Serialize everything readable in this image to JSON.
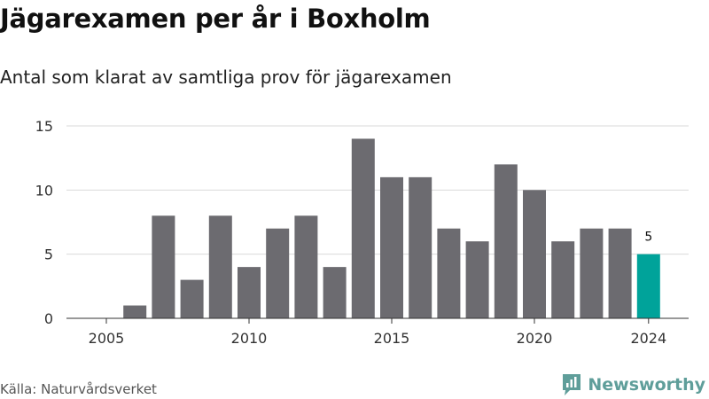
{
  "title": "Jägarexamen per år i Boxholm",
  "subtitle": "Antal som klarat av samtliga prov för jägarexamen",
  "source": "Källa: Naturvårdsverket",
  "brand": "Newsworthy",
  "colors": {
    "bar": "#6c6b70",
    "highlight": "#00a39a",
    "grid": "#d9d9d9",
    "axis": "#333333",
    "brand": "#5f9e9a"
  },
  "chart_data": {
    "type": "bar",
    "x": [
      2005,
      2006,
      2007,
      2008,
      2009,
      2010,
      2011,
      2012,
      2013,
      2014,
      2015,
      2016,
      2017,
      2018,
      2019,
      2020,
      2021,
      2022,
      2023,
      2024
    ],
    "values": [
      0,
      1,
      8,
      3,
      8,
      4,
      7,
      8,
      4,
      14,
      11,
      11,
      7,
      6,
      12,
      10,
      6,
      7,
      7,
      5
    ],
    "xticks": [
      "2005",
      "2010",
      "2015",
      "2020",
      "2024"
    ],
    "yticks": [
      0,
      5,
      10,
      15
    ],
    "ylim": [
      0,
      15
    ],
    "highlight_x": 2024,
    "data_labels": [
      {
        "x": 2024,
        "label": "5"
      }
    ],
    "grid": true,
    "xlabel": "",
    "ylabel": ""
  }
}
